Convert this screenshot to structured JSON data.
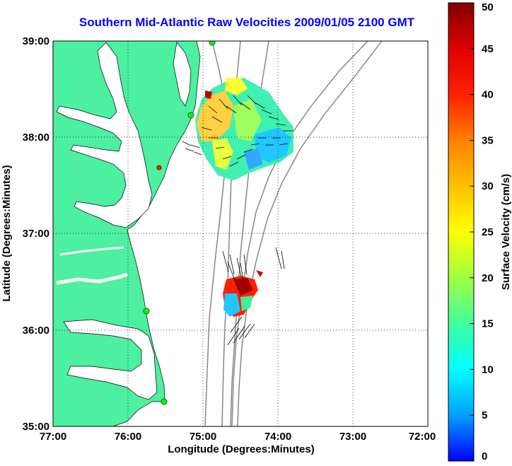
{
  "title": "Southern Mid-Atlantic Raw Velocities 2009/01/05 2100 GMT",
  "x_axis": {
    "label": "Longitude (Degrees:Minutes)",
    "ticks": [
      "77:00",
      "76:00",
      "75:00",
      "74:00",
      "73:00",
      "72:00"
    ]
  },
  "y_axis": {
    "label": "Latitude (Degrees:Minutes)",
    "ticks": [
      "39:00",
      "38:00",
      "37:00",
      "36:00",
      "35:00"
    ]
  },
  "colorbar": {
    "label": "Surface Velocity (cm/s)",
    "ticks": [
      "0",
      "5",
      "10",
      "15",
      "20",
      "25",
      "30",
      "35",
      "40",
      "45",
      "50"
    ],
    "range": [
      0,
      50
    ],
    "colors": [
      "#0000ff",
      "#00a0ff",
      "#00ffff",
      "#40ffa0",
      "#a0ff40",
      "#ffff00",
      "#ffc000",
      "#ff8000",
      "#ff2000",
      "#e00000",
      "#800000"
    ]
  },
  "colors": {
    "land": "#4cf0a0",
    "title": "#0000ff",
    "bathymetry": "#808080",
    "radar_site": "#00ff00"
  },
  "map": {
    "lon_range": [
      -77,
      -72
    ],
    "lat_range": [
      35,
      39
    ],
    "radar_site_icon": "radar-site-dot",
    "grid": "dotted"
  }
}
